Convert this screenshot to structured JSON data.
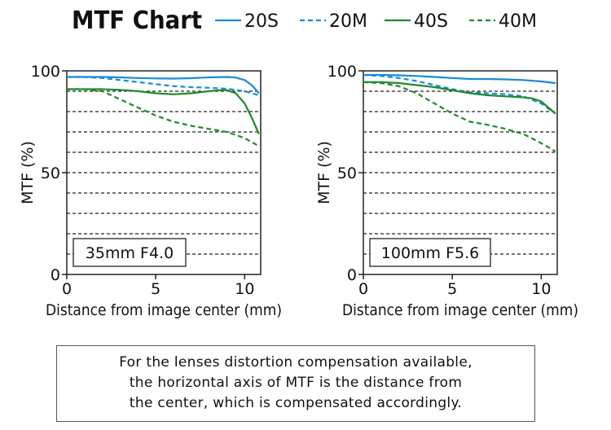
{
  "title": "MTF Chart",
  "legend": [
    {
      "name": "20S",
      "color": "#1a8bd6",
      "dash": false
    },
    {
      "name": "20M",
      "color": "#1a8bd6",
      "dash": true
    },
    {
      "name": "40S",
      "color": "#1f8a2a",
      "dash": false
    },
    {
      "name": "40M",
      "color": "#1f8a2a",
      "dash": true
    }
  ],
  "chart_data": [
    {
      "type": "line",
      "panel_label": "35mm F4.0",
      "xlabel": "Distance from image center (mm)",
      "ylabel": "MTF (%)",
      "xlim": [
        0,
        10.9
      ],
      "ylim": [
        0,
        100
      ],
      "xticks": [
        0,
        5,
        10
      ],
      "yticks": [
        0,
        50,
        100
      ],
      "grid": "horizontal dashed every 10",
      "series": [
        {
          "name": "20S",
          "x": [
            0,
            1,
            2,
            3,
            4,
            5,
            6,
            7,
            8,
            9,
            9.5,
            10,
            10.4,
            10.8
          ],
          "y": [
            97,
            97,
            97,
            96.8,
            96.5,
            96.3,
            96.2,
            96.4,
            96.8,
            97,
            96.7,
            95.5,
            93,
            89
          ]
        },
        {
          "name": "20M",
          "x": [
            0,
            1,
            2,
            3,
            4,
            5,
            6,
            7,
            8,
            9,
            10,
            10.8
          ],
          "y": [
            97,
            97,
            96.5,
            95.5,
            94.5,
            93.5,
            92.5,
            92,
            91.7,
            91.2,
            90,
            88
          ]
        },
        {
          "name": "40S",
          "x": [
            0,
            1,
            2,
            3,
            4,
            5,
            6,
            7,
            8,
            8.5,
            9,
            9.5,
            10,
            10.4,
            10.8
          ],
          "y": [
            91,
            91,
            91,
            90.7,
            90,
            89,
            88.5,
            89,
            90,
            90.5,
            90.5,
            89,
            84,
            77,
            69
          ]
        },
        {
          "name": "40M",
          "x": [
            0,
            1,
            2,
            3,
            4,
            5,
            6,
            7,
            8,
            9,
            10,
            10.8
          ],
          "y": [
            91,
            91,
            90,
            86,
            82,
            78,
            75,
            73,
            71.5,
            70,
            67,
            63
          ]
        }
      ]
    },
    {
      "type": "line",
      "panel_label": "100mm F5.6",
      "xlabel": "Distance from image center (mm)",
      "ylabel": "MTF (%)",
      "xlim": [
        0,
        10.9
      ],
      "ylim": [
        0,
        100
      ],
      "xticks": [
        0,
        5,
        10
      ],
      "yticks": [
        0,
        50,
        100
      ],
      "grid": "horizontal dashed every 10",
      "series": [
        {
          "name": "20S",
          "x": [
            0,
            1,
            2,
            3,
            4,
            5,
            6,
            7,
            8,
            9,
            10,
            10.8
          ],
          "y": [
            98,
            98,
            97.8,
            97.5,
            97,
            96.5,
            96,
            96,
            95.8,
            95.5,
            94.8,
            94
          ]
        },
        {
          "name": "20M",
          "x": [
            0,
            1,
            2,
            3,
            4,
            5,
            6,
            7,
            8,
            9,
            10,
            10.8
          ],
          "y": [
            98,
            97.5,
            96.5,
            95,
            93,
            91,
            89.5,
            89,
            88.5,
            87.5,
            84,
            79
          ]
        },
        {
          "name": "40S",
          "x": [
            0,
            1,
            2,
            3,
            4,
            5,
            6,
            7,
            8,
            9,
            9.5,
            10,
            10.4,
            10.8
          ],
          "y": [
            94.5,
            94.5,
            94,
            93,
            92,
            90.5,
            89,
            88,
            87.5,
            87,
            86.5,
            85,
            82,
            79
          ]
        },
        {
          "name": "40M",
          "x": [
            0,
            1,
            2,
            3,
            4,
            5,
            6,
            7,
            8,
            9,
            10,
            10.8
          ],
          "y": [
            94.5,
            94,
            92.5,
            89,
            84,
            79,
            75,
            73.5,
            71.5,
            69,
            64.5,
            60.5
          ]
        }
      ]
    }
  ],
  "note": {
    "lines": [
      "For the lenses distortion compensation available,",
      "the horizontal axis of MTF is the distance from",
      "the center, which is compensated accordingly."
    ]
  }
}
